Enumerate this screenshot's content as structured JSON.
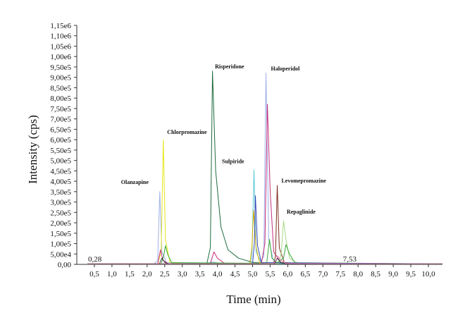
{
  "chart_data": {
    "type": "line",
    "xlabel": "Time (min)",
    "ylabel": "Intensity (cps)",
    "xlim": [
      0,
      10.4
    ],
    "ylim": [
      0,
      1150000
    ],
    "x_tick_values": [
      0.5,
      1.0,
      1.5,
      2.0,
      2.5,
      3.0,
      3.5,
      4.0,
      4.5,
      5.0,
      5.5,
      6.0,
      6.5,
      7.0,
      7.5,
      8.0,
      8.5,
      9.0,
      9.5,
      10.0
    ],
    "x_tick_labels": [
      "0,5",
      "1,0",
      "1,5",
      "2,0",
      "2,5",
      "3,0",
      "3,5",
      "4,0",
      "4,5",
      "5,0",
      "5,5",
      "6,0",
      "6,5",
      "7,0",
      "7,5",
      "8,0",
      "8,5",
      "9,0",
      "9,5",
      "10,0"
    ],
    "y_tick_values": [
      0,
      50000,
      100000,
      150000,
      200000,
      250000,
      300000,
      350000,
      400000,
      450000,
      500000,
      550000,
      600000,
      650000,
      700000,
      750000,
      800000,
      850000,
      900000,
      950000,
      1000000,
      1050000,
      1100000,
      1150000
    ],
    "y_tick_labels": [
      "0,00",
      "5,00e4",
      "1,00e5",
      "1,50e5",
      "2,00e5",
      "2,50e5",
      "3,00e5",
      "3,50e5",
      "4,00e5",
      "4,50e5",
      "5,00e5",
      "5,50e5",
      "6,00e5",
      "6,50e5",
      "7,00e5",
      "7,50e5",
      "8,00e5",
      "8,50e5",
      "9,00e5",
      "9,50e5",
      "1,00e6",
      "1,05e6",
      "1,10e6",
      "1,15e6"
    ],
    "annotations": [
      {
        "text": "0,28",
        "x": 0.28,
        "y": 0
      },
      {
        "text": "7,53",
        "x": 7.53,
        "y": 0
      }
    ],
    "peak_labels": [
      {
        "text": "Olanzapine",
        "x": 2.3,
        "y": 360000
      },
      {
        "text": "Chlorpromazine",
        "x": 2.45,
        "y": 600000
      },
      {
        "text": "Risperidone",
        "x": 3.85,
        "y": 930000
      },
      {
        "text": "Sulpiride",
        "x": 5.05,
        "y": 460000
      },
      {
        "text": "Haloperidol",
        "x": 5.4,
        "y": 920000
      },
      {
        "text": "Levomepromazine",
        "x": 5.7,
        "y": 380000
      },
      {
        "text": "Repaglinide",
        "x": 5.85,
        "y": 230000
      }
    ],
    "series": [
      {
        "color": "#9fb0e8",
        "points": [
          [
            0.3,
            2000
          ],
          [
            2.2,
            3000
          ],
          [
            2.3,
            20000
          ],
          [
            2.36,
            350000
          ],
          [
            2.42,
            60000
          ],
          [
            2.55,
            8000
          ],
          [
            3.7,
            4000
          ],
          [
            3.85,
            12000
          ],
          [
            4.1,
            4000
          ],
          [
            5.2,
            3000
          ],
          [
            5.32,
            40000
          ],
          [
            5.38,
            920000
          ],
          [
            5.46,
            120000
          ],
          [
            5.6,
            10000
          ],
          [
            6.2,
            3000
          ],
          [
            10.4,
            2000
          ]
        ]
      },
      {
        "color": "#e6e61c",
        "points": [
          [
            0.3,
            2000
          ],
          [
            2.3,
            3000
          ],
          [
            2.4,
            60000
          ],
          [
            2.46,
            600000
          ],
          [
            2.52,
            120000
          ],
          [
            2.65,
            10000
          ],
          [
            3.0,
            3000
          ],
          [
            10.4,
            2000
          ]
        ]
      },
      {
        "color": "#1f6b3e",
        "points": [
          [
            0.3,
            2000
          ],
          [
            3.7,
            4000
          ],
          [
            3.8,
            80000
          ],
          [
            3.86,
            930000
          ],
          [
            3.95,
            450000
          ],
          [
            4.1,
            180000
          ],
          [
            4.3,
            70000
          ],
          [
            4.6,
            30000
          ],
          [
            5.0,
            10000
          ],
          [
            5.5,
            4000
          ],
          [
            10.4,
            2000
          ]
        ]
      },
      {
        "color": "#5fc8d8",
        "points": [
          [
            0.3,
            2000
          ],
          [
            4.9,
            3000
          ],
          [
            4.98,
            30000
          ],
          [
            5.04,
            455000
          ],
          [
            5.1,
            60000
          ],
          [
            5.25,
            8000
          ],
          [
            5.6,
            3000
          ],
          [
            10.4,
            2000
          ]
        ]
      },
      {
        "color": "#c4307a",
        "points": [
          [
            0.3,
            2000
          ],
          [
            2.3,
            3000
          ],
          [
            2.38,
            70000
          ],
          [
            2.45,
            20000
          ],
          [
            2.6,
            3000
          ],
          [
            3.8,
            4000
          ],
          [
            3.9,
            60000
          ],
          [
            4.0,
            30000
          ],
          [
            4.2,
            5000
          ],
          [
            5.25,
            5000
          ],
          [
            5.35,
            100000
          ],
          [
            5.42,
            770000
          ],
          [
            5.5,
            350000
          ],
          [
            5.6,
            60000
          ],
          [
            5.8,
            10000
          ],
          [
            6.2,
            3000
          ],
          [
            10.4,
            2000
          ]
        ]
      },
      {
        "color": "#7b2d1e",
        "points": [
          [
            0.3,
            2000
          ],
          [
            5.6,
            3000
          ],
          [
            5.65,
            40000
          ],
          [
            5.7,
            380000
          ],
          [
            5.76,
            80000
          ],
          [
            5.9,
            10000
          ],
          [
            6.3,
            3000
          ],
          [
            10.4,
            2000
          ]
        ]
      },
      {
        "color": "#a8d888",
        "points": [
          [
            0.3,
            2000
          ],
          [
            5.75,
            4000
          ],
          [
            5.82,
            60000
          ],
          [
            5.88,
            210000
          ],
          [
            5.95,
            120000
          ],
          [
            6.05,
            30000
          ],
          [
            6.3,
            5000
          ],
          [
            10.4,
            2000
          ]
        ]
      },
      {
        "color": "#3aa83a",
        "points": [
          [
            0.3,
            2000
          ],
          [
            2.4,
            3000
          ],
          [
            2.47,
            40000
          ],
          [
            2.52,
            90000
          ],
          [
            2.58,
            50000
          ],
          [
            2.7,
            8000
          ],
          [
            5.4,
            5000
          ],
          [
            5.48,
            120000
          ],
          [
            5.55,
            30000
          ],
          [
            5.7,
            8000
          ],
          [
            5.88,
            30000
          ],
          [
            5.95,
            95000
          ],
          [
            6.05,
            50000
          ],
          [
            6.2,
            8000
          ],
          [
            10.4,
            2000
          ]
        ]
      },
      {
        "color": "#d4b000",
        "points": [
          [
            0.3,
            2000
          ],
          [
            4.92,
            3000
          ],
          [
            4.98,
            80000
          ],
          [
            5.03,
            260000
          ],
          [
            5.1,
            80000
          ],
          [
            5.2,
            8000
          ],
          [
            10.4,
            2000
          ]
        ]
      },
      {
        "color": "#3548b8",
        "points": [
          [
            0.3,
            2000
          ],
          [
            5.0,
            3000
          ],
          [
            5.05,
            100000
          ],
          [
            5.08,
            330000
          ],
          [
            5.14,
            90000
          ],
          [
            5.25,
            8000
          ],
          [
            10.4,
            2000
          ]
        ]
      },
      {
        "color": "#333333",
        "points": [
          [
            0.3,
            2000
          ],
          [
            2.35,
            3000
          ],
          [
            2.42,
            30000
          ],
          [
            2.5,
            10000
          ],
          [
            2.6,
            3000
          ],
          [
            5.62,
            3000
          ],
          [
            5.7,
            30000
          ],
          [
            5.8,
            10000
          ],
          [
            5.95,
            3000
          ],
          [
            10.4,
            2000
          ]
        ]
      },
      {
        "color": "#e888b8",
        "points": [
          [
            0.3,
            2000
          ],
          [
            5.6,
            3000
          ],
          [
            5.66,
            20000
          ],
          [
            5.72,
            40000
          ],
          [
            5.8,
            20000
          ],
          [
            5.95,
            4000
          ],
          [
            10.4,
            2000
          ]
        ]
      }
    ]
  }
}
